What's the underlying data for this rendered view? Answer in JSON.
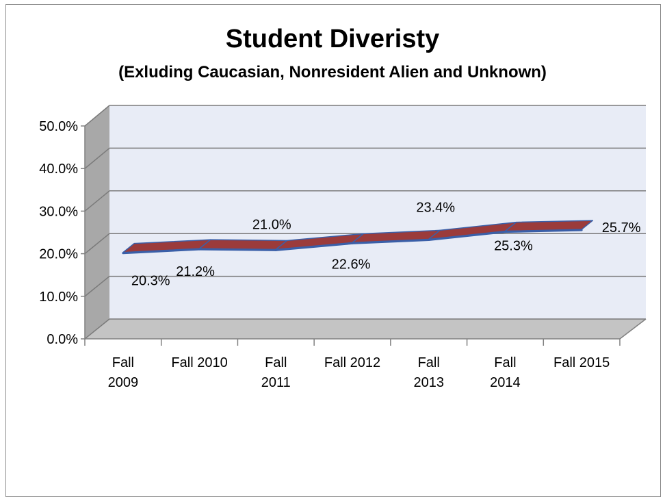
{
  "chart_data": {
    "type": "line",
    "title": "Student Diveristy",
    "subtitle": "(Exluding Caucasian, Nonresident Alien and Unknown)",
    "categories": [
      [
        "Fall",
        "2009"
      ],
      [
        "Fall 2010"
      ],
      [
        "Fall",
        "2011"
      ],
      [
        "Fall 2012"
      ],
      [
        "Fall",
        "2013"
      ],
      [
        "Fall",
        "2014"
      ],
      [
        "Fall 2015"
      ]
    ],
    "values": [
      0.203,
      0.212,
      0.21,
      0.226,
      0.234,
      0.253,
      0.257
    ],
    "data_labels": [
      "20.3%",
      "21.2%",
      "21.0%",
      "22.6%",
      "23.4%",
      "25.3%",
      "25.7%"
    ],
    "ylim": [
      0,
      0.5
    ],
    "yticks": [
      0,
      0.1,
      0.2,
      0.3,
      0.4,
      0.5
    ],
    "ytick_labels": [
      "0.0%",
      "10.0%",
      "20.0%",
      "30.0%",
      "40.0%",
      "50.0%"
    ],
    "grid": true,
    "legend": "none",
    "style": "3d",
    "colors": {
      "line": "#9b3b3b",
      "line_edge": "#3a5fa8",
      "back_wall": "#e8ecf6",
      "side_wall": "#a8a8a8",
      "floor": "#c4c4c4",
      "gridline": "#7a7a7a"
    }
  }
}
